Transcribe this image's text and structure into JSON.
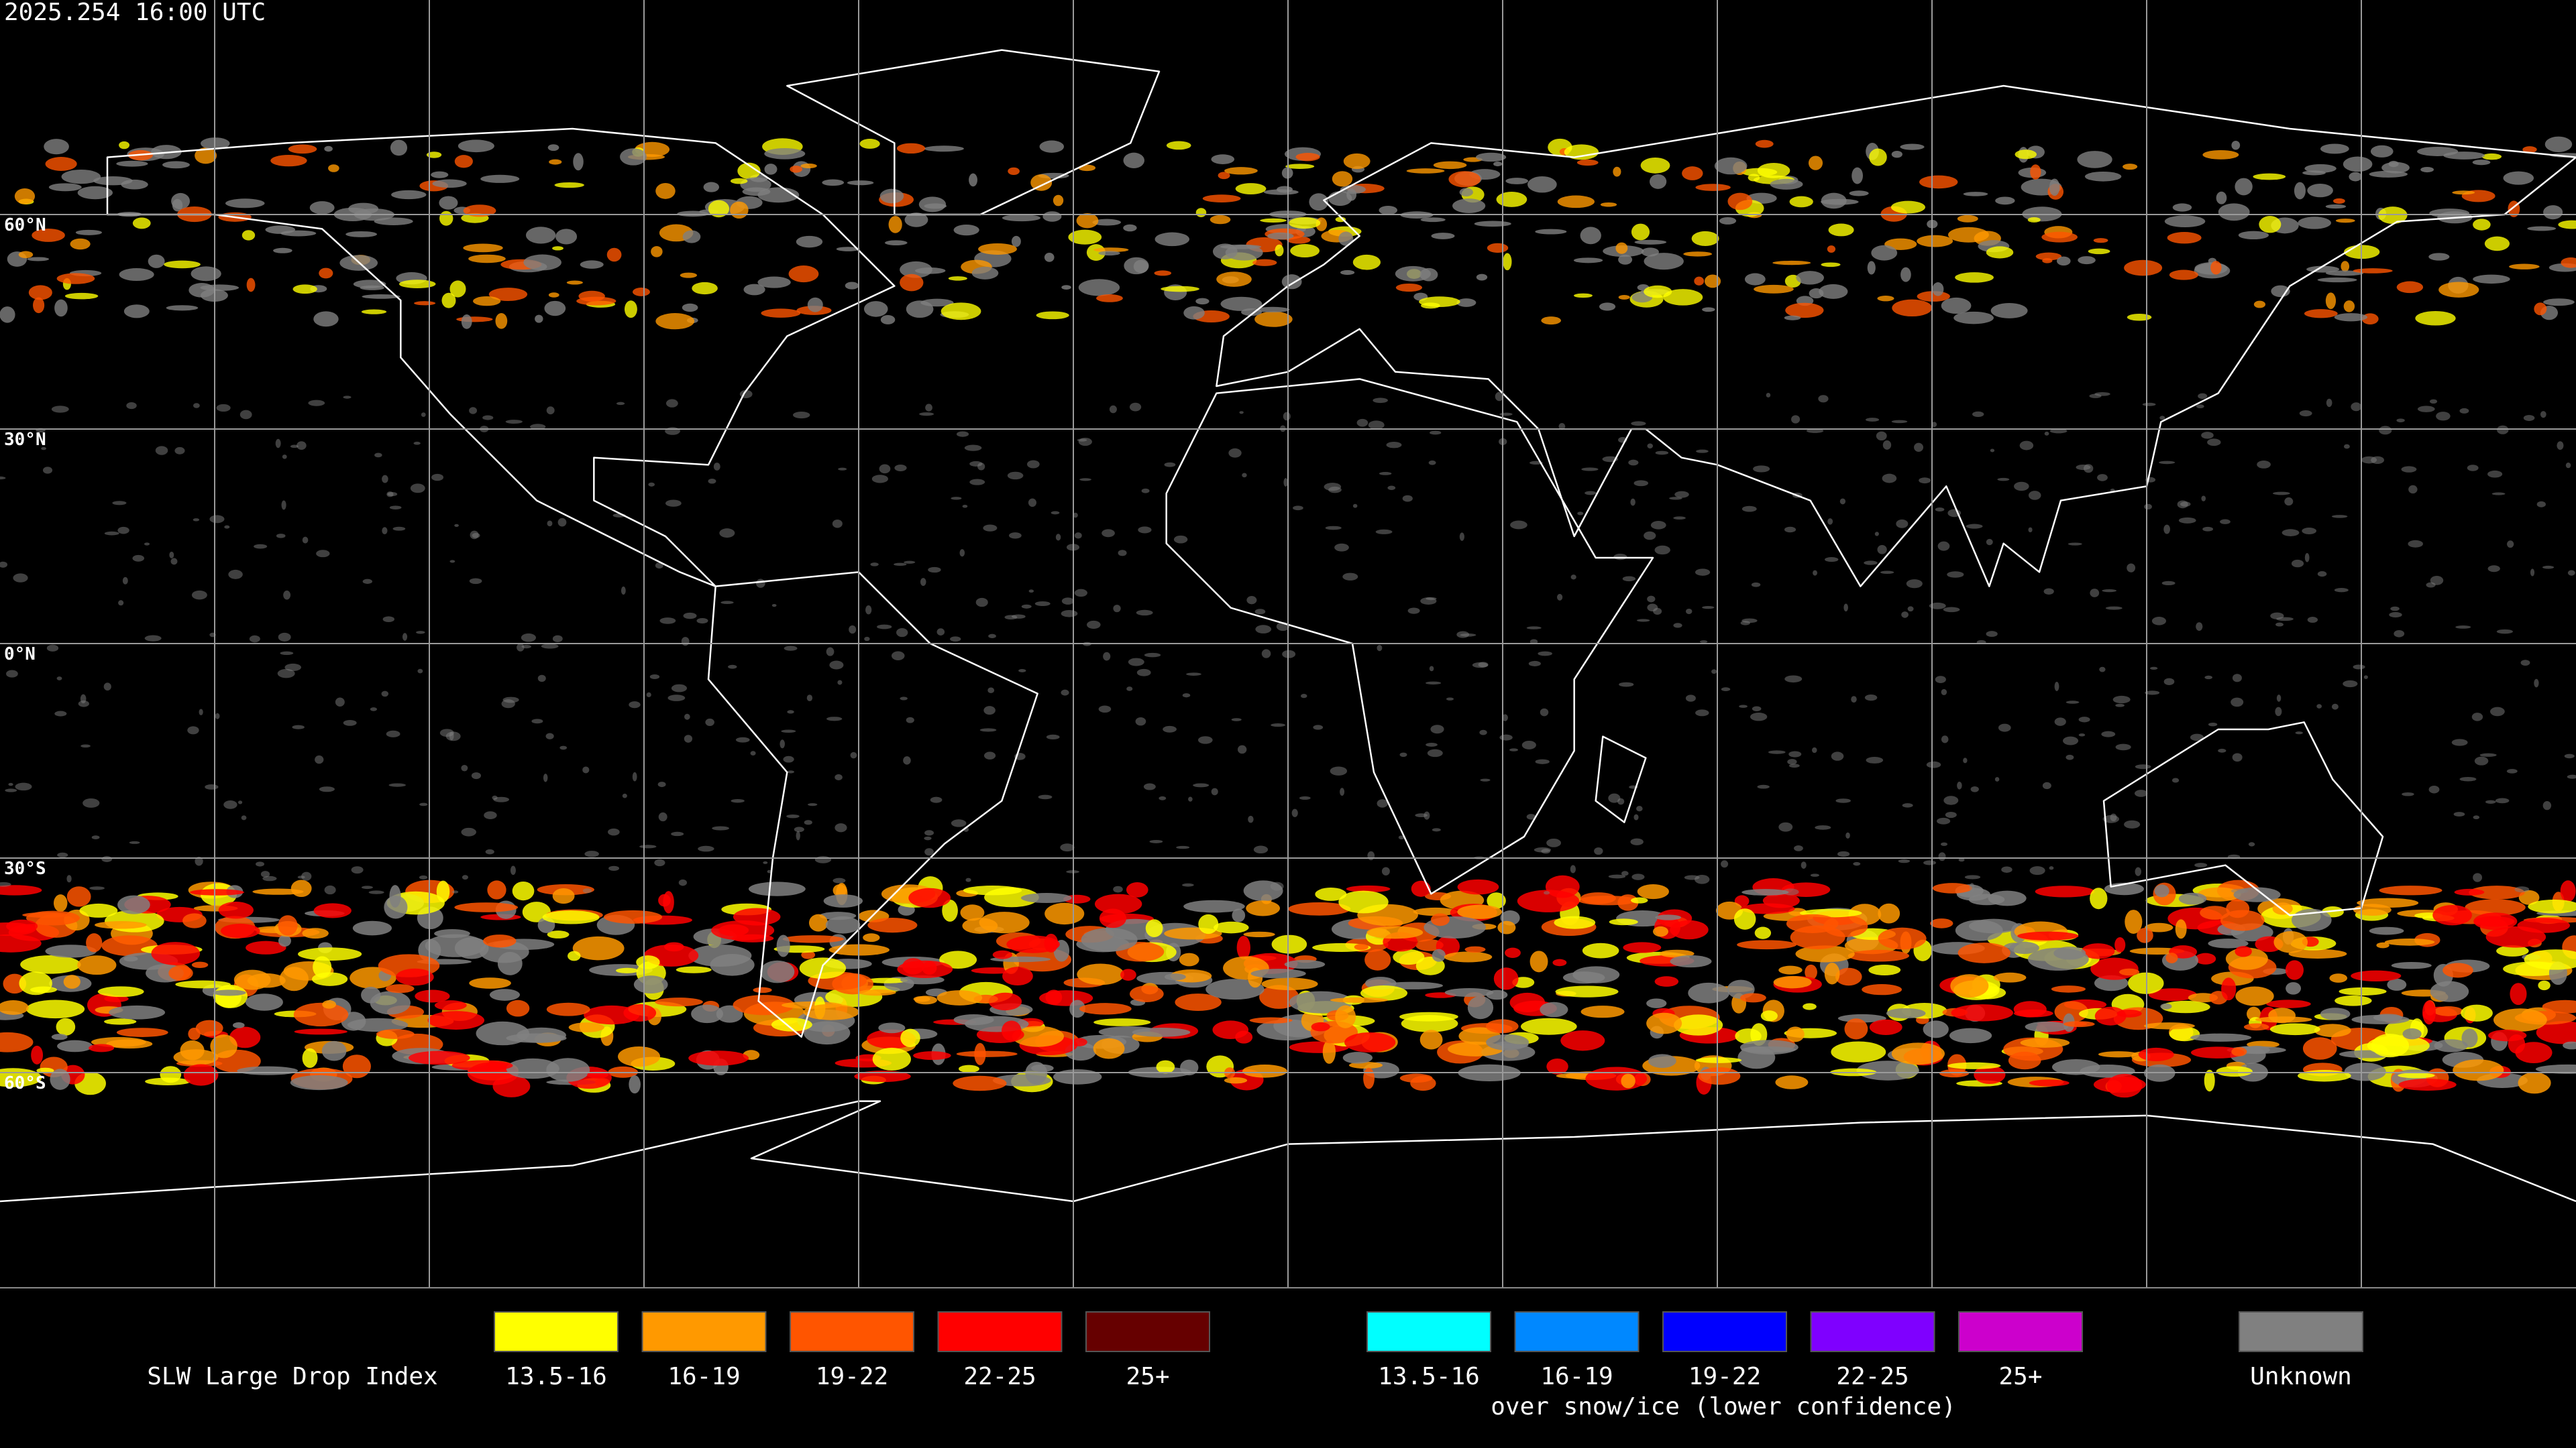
{
  "timestamp": "2025.254 16:00 UTC",
  "latitude_labels": [
    "60°N",
    "30°N",
    "0°N",
    "30°S",
    "60°S"
  ],
  "legend": {
    "title": "SLW Large Drop Index",
    "items": [
      {
        "label": "13.5-16",
        "color": "#ffff00"
      },
      {
        "label": "16-19",
        "color": "#ff9900"
      },
      {
        "label": "19-22",
        "color": "#ff5500"
      },
      {
        "label": "22-25",
        "color": "#ff0000"
      },
      {
        "label": "25+",
        "color": "#660000"
      }
    ],
    "snow_items": [
      {
        "label": "13.5-16",
        "color": "#00ffff"
      },
      {
        "label": "16-19",
        "color": "#0088ff"
      },
      {
        "label": "19-22",
        "color": "#0000ff"
      },
      {
        "label": "22-25",
        "color": "#7f00ff"
      },
      {
        "label": "25+",
        "color": "#cc00cc"
      }
    ],
    "snow_note": "over snow/ice (lower confidence)",
    "unknown": {
      "label": "Unknown",
      "color": "#808080"
    }
  }
}
